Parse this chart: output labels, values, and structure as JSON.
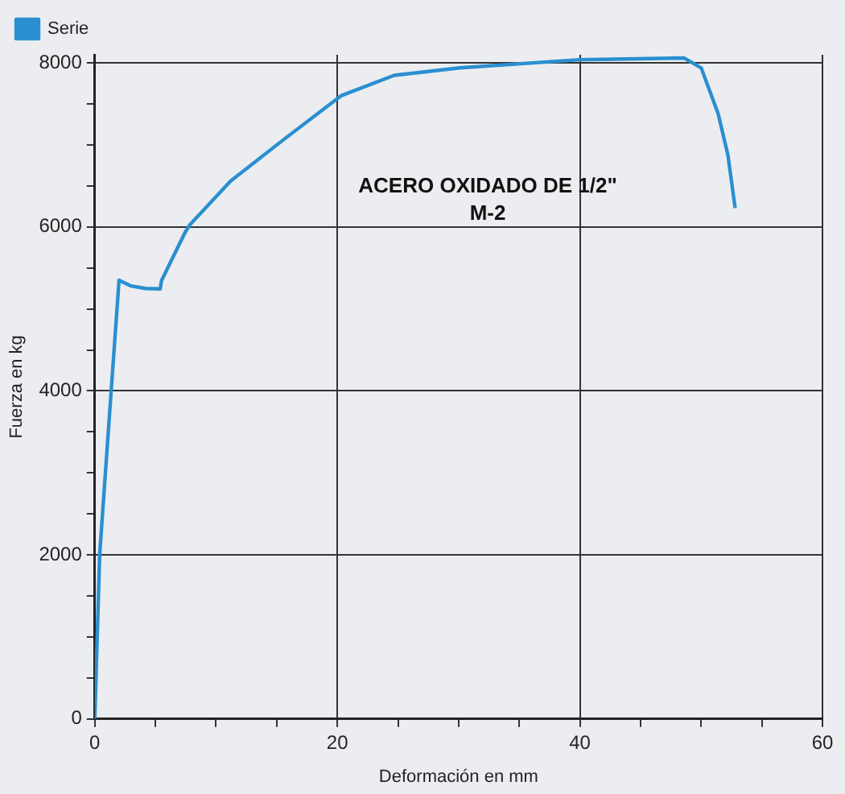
{
  "chart_data": {
    "type": "line",
    "xlabel": "Deformación en mm",
    "ylabel": "Fuerza en kg",
    "annotations": [
      "ACERO OXIDADO DE 1/2\"",
      "M-2"
    ],
    "x": [
      0,
      0.4,
      1.35,
      2.0,
      3.0,
      4.2,
      5.4,
      5.5,
      7.4,
      7.8,
      11.2,
      15.7,
      20.3,
      24.7,
      30.1,
      40,
      48.6,
      50,
      51.4,
      52.2,
      52.8
    ],
    "series": [
      {
        "name": "Serie",
        "color": "#2a8fd0",
        "values": [
          0,
          2000,
          4000,
          5350,
          5280,
          5250,
          5245,
          5345,
          5920,
          6020,
          6560,
          7080,
          7600,
          7850,
          7940,
          8040,
          8060,
          7940,
          7380,
          6880,
          6230
        ]
      }
    ],
    "xlim": [
      0,
      60
    ],
    "ylim": [
      0,
      8100
    ],
    "xticks": [
      0,
      {
        "value": 5,
        "label": null
      },
      {
        "value": 10,
        "label": null
      },
      {
        "value": 15,
        "label": null
      },
      20,
      {
        "value": 25,
        "label": null
      },
      {
        "value": 30,
        "label": null
      },
      {
        "value": 35,
        "label": null
      },
      40,
      {
        "value": 45,
        "label": null
      },
      {
        "value": 50,
        "label": null
      },
      {
        "value": 55,
        "label": null
      },
      60
    ],
    "yticks": [
      0,
      {
        "value": 500,
        "label": null
      },
      {
        "value": 1000,
        "label": null
      },
      {
        "value": 1500,
        "label": null
      },
      2000,
      {
        "value": 2500,
        "label": null
      },
      {
        "value": 3000,
        "label": null
      },
      {
        "value": 3500,
        "label": null
      },
      4000,
      {
        "value": 4500,
        "label": null
      },
      {
        "value": 5000,
        "label": null
      },
      {
        "value": 5500,
        "label": null
      },
      6000,
      {
        "value": 6500,
        "label": null
      },
      {
        "value": 7000,
        "label": null
      },
      {
        "value": 7500,
        "label": null
      },
      8000
    ],
    "grid": true,
    "legend": "top left",
    "marker": "none",
    "line_style": "solid"
  }
}
